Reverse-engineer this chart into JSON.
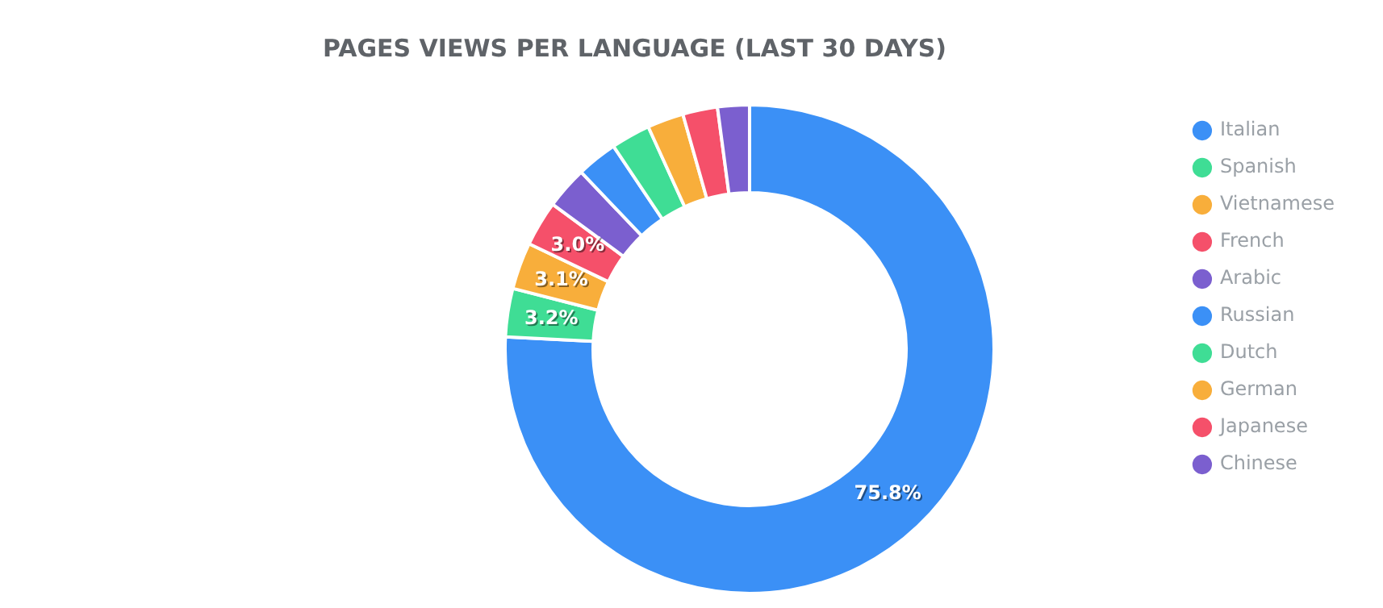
{
  "chart_data": {
    "type": "donut",
    "title": "PAGES VIEWS PER LANGUAGE (LAST 30 DAYS)",
    "categories": [
      "Italian",
      "Spanish",
      "Vietnamese",
      "French",
      "Arabic",
      "Russian",
      "Dutch",
      "German",
      "Japanese",
      "Chinese"
    ],
    "values": [
      75.8,
      3.2,
      3.1,
      3.0,
      2.8,
      2.7,
      2.6,
      2.4,
      2.3,
      2.1
    ],
    "value_labels": [
      "75.8%",
      "3.2%",
      "3.1%",
      "3.0%",
      null,
      null,
      null,
      null,
      null,
      null
    ],
    "colors": [
      "#3b90f6",
      "#3fdd95",
      "#f8ae3b",
      "#f5506a",
      "#7b5fcf",
      "#3b90f6",
      "#3fdd95",
      "#f8ae3b",
      "#f5506a",
      "#7b5fcf"
    ],
    "legend": "right"
  }
}
